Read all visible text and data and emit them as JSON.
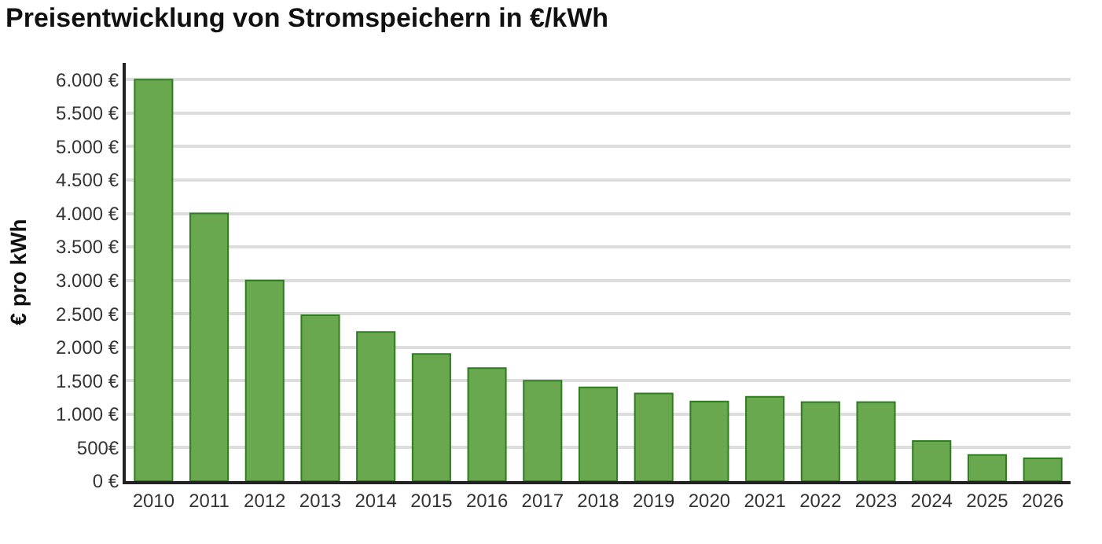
{
  "chart_data": {
    "type": "bar",
    "title": "Preisentwicklung von Stromspeichern in €/kWh",
    "ylabel": "€ pro kWh",
    "categories": [
      "2010",
      "2011",
      "2012",
      "2013",
      "2014",
      "2015",
      "2016",
      "2017",
      "2018",
      "2019",
      "2020",
      "2021",
      "2022",
      "2023",
      "2024",
      "2025",
      "2026"
    ],
    "series": [
      {
        "color": "#6aa84f",
        "values": [
          6000,
          4000,
          3000,
          2480,
          2230,
          1900,
          1690,
          1500,
          1400,
          1310,
          1190,
          1260,
          1180,
          1180,
          600,
          390,
          340
        ]
      }
    ],
    "ylim": [
      0,
      6250
    ],
    "yticks": [
      {
        "value": 0,
        "label": "0 €"
      },
      {
        "value": 500,
        "label": "500€"
      },
      {
        "value": 1000,
        "label": "1.000 €"
      },
      {
        "value": 1500,
        "label": "1.500 €"
      },
      {
        "value": 2000,
        "label": "2.000 €"
      },
      {
        "value": 2500,
        "label": "2.500 €"
      },
      {
        "value": 3000,
        "label": "3.000 €"
      },
      {
        "value": 3500,
        "label": "3.500 €"
      },
      {
        "value": 4000,
        "label": "4.000 €"
      },
      {
        "value": 4500,
        "label": "4.500 €"
      },
      {
        "value": 5000,
        "label": "5.000 €"
      },
      {
        "value": 5500,
        "label": "5.500 €"
      },
      {
        "value": 6000,
        "label": "6.000 €"
      }
    ],
    "grid": "y"
  }
}
